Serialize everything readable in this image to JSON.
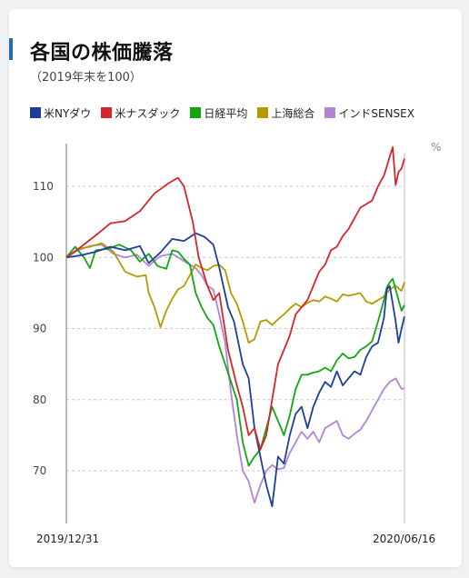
{
  "title": "各国の株価騰落",
  "subtitle": "（2019年末を100）",
  "colors": {
    "accent_bar": "#1f6fb2"
  },
  "chart_data": {
    "type": "line",
    "title": "各国の株価騰落",
    "subtitle": "（2019年末を100）",
    "unit": "%",
    "ylim": [
      62,
      116
    ],
    "yticks": [
      70,
      80,
      90,
      100,
      110
    ],
    "x_start_label": "2019/12/31",
    "x_end_label": "2020/06/16",
    "grid": true,
    "legend": "top",
    "x_trading_days": 115,
    "series": [
      {
        "name": "米NYダウ",
        "color": "#1c3f9a",
        "values": [
          [
            0,
            100
          ],
          [
            5,
            100.3
          ],
          [
            10,
            100.8
          ],
          [
            15,
            101.5
          ],
          [
            20,
            101
          ],
          [
            25,
            101.6
          ],
          [
            28,
            99.2
          ],
          [
            32,
            100.7
          ],
          [
            36,
            102.6
          ],
          [
            40,
            102.3
          ],
          [
            44,
            103.4
          ],
          [
            47,
            102.9
          ],
          [
            50,
            101.8
          ],
          [
            52,
            98.6
          ],
          [
            55,
            93
          ],
          [
            57,
            91
          ],
          [
            60,
            85
          ],
          [
            62,
            83
          ],
          [
            64,
            76
          ],
          [
            66,
            72
          ],
          [
            68,
            68
          ],
          [
            70,
            65
          ],
          [
            72,
            72
          ],
          [
            74,
            71
          ],
          [
            76,
            75
          ],
          [
            78,
            78
          ],
          [
            80,
            79
          ],
          [
            82,
            76
          ],
          [
            84,
            79
          ],
          [
            86,
            81
          ],
          [
            88,
            82.5
          ],
          [
            90,
            81.8
          ],
          [
            92,
            84
          ],
          [
            94,
            82
          ],
          [
            96,
            83
          ],
          [
            98,
            84
          ],
          [
            100,
            83.5
          ],
          [
            102,
            86
          ],
          [
            104,
            87.5
          ],
          [
            106,
            88
          ],
          [
            108,
            91.5
          ],
          [
            109,
            95.5
          ],
          [
            110,
            96
          ],
          [
            111,
            93.5
          ],
          [
            112,
            91
          ],
          [
            113,
            88
          ],
          [
            114,
            90
          ],
          [
            115,
            91.7
          ]
        ]
      },
      {
        "name": "米ナスダック",
        "color": "#d6262b",
        "values": [
          [
            0,
            100
          ],
          [
            5,
            101.5
          ],
          [
            10,
            103.1
          ],
          [
            15,
            104.8
          ],
          [
            20,
            105.1
          ],
          [
            25,
            106.5
          ],
          [
            30,
            109
          ],
          [
            35,
            110.5
          ],
          [
            38,
            111.2
          ],
          [
            40,
            110
          ],
          [
            43,
            105
          ],
          [
            45,
            100
          ],
          [
            48,
            96
          ],
          [
            50,
            94
          ],
          [
            52,
            95
          ],
          [
            55,
            87
          ],
          [
            58,
            82
          ],
          [
            60,
            79
          ],
          [
            62,
            75
          ],
          [
            64,
            76
          ],
          [
            66,
            73
          ],
          [
            68,
            75
          ],
          [
            70,
            80
          ],
          [
            72,
            85
          ],
          [
            74,
            87
          ],
          [
            76,
            89
          ],
          [
            78,
            92
          ],
          [
            80,
            93
          ],
          [
            82,
            94
          ],
          [
            84,
            96
          ],
          [
            86,
            98
          ],
          [
            88,
            99
          ],
          [
            90,
            101
          ],
          [
            92,
            101.5
          ],
          [
            94,
            103
          ],
          [
            96,
            104
          ],
          [
            98,
            105.5
          ],
          [
            100,
            107
          ],
          [
            102,
            107.5
          ],
          [
            104,
            108
          ],
          [
            106,
            110
          ],
          [
            108,
            111.5
          ],
          [
            109,
            112.8
          ],
          [
            110,
            114.2
          ],
          [
            111,
            115.5
          ],
          [
            112,
            110.2
          ],
          [
            113,
            112
          ],
          [
            114,
            112.5
          ],
          [
            115,
            113.9
          ]
        ]
      },
      {
        "name": "日経平均",
        "color": "#12a612",
        "values": [
          [
            0,
            100
          ],
          [
            3,
            101.5
          ],
          [
            6,
            100
          ],
          [
            8,
            98.5
          ],
          [
            10,
            101
          ],
          [
            14,
            101.2
          ],
          [
            18,
            101.8
          ],
          [
            22,
            101
          ],
          [
            25,
            99.4
          ],
          [
            28,
            100.5
          ],
          [
            31,
            98.8
          ],
          [
            34,
            98.4
          ],
          [
            36,
            101
          ],
          [
            38,
            100.8
          ],
          [
            40,
            99.8
          ],
          [
            42,
            99
          ],
          [
            44,
            95
          ],
          [
            46,
            93
          ],
          [
            48,
            91.5
          ],
          [
            50,
            90.5
          ],
          [
            52,
            87.5
          ],
          [
            54,
            85
          ],
          [
            56,
            82.5
          ],
          [
            58,
            80
          ],
          [
            60,
            74
          ],
          [
            62,
            70.7
          ],
          [
            64,
            72
          ],
          [
            66,
            73
          ],
          [
            68,
            76
          ],
          [
            70,
            79
          ],
          [
            72,
            77
          ],
          [
            74,
            75
          ],
          [
            76,
            77.8
          ],
          [
            78,
            81.5
          ],
          [
            80,
            83.5
          ],
          [
            82,
            83.5
          ],
          [
            84,
            83.8
          ],
          [
            86,
            84
          ],
          [
            88,
            84.5
          ],
          [
            90,
            84
          ],
          [
            92,
            85.5
          ],
          [
            94,
            86.5
          ],
          [
            96,
            85.8
          ],
          [
            98,
            86
          ],
          [
            100,
            87
          ],
          [
            102,
            87.5
          ],
          [
            104,
            88.2
          ],
          [
            106,
            91
          ],
          [
            108,
            94
          ],
          [
            109,
            95.8
          ],
          [
            110,
            96.5
          ],
          [
            111,
            97
          ],
          [
            112,
            95.5
          ],
          [
            113,
            94
          ],
          [
            114,
            92.5
          ],
          [
            115,
            93.3
          ]
        ]
      },
      {
        "name": "上海総合",
        "color": "#b59a00",
        "values": [
          [
            0,
            100
          ],
          [
            4,
            101.2
          ],
          [
            8,
            101.5
          ],
          [
            12,
            102
          ],
          [
            16,
            100.8
          ],
          [
            20,
            98
          ],
          [
            24,
            97.3
          ],
          [
            27,
            97.5
          ],
          [
            28,
            95
          ],
          [
            30,
            93
          ],
          [
            32,
            90.2
          ],
          [
            34,
            92.5
          ],
          [
            36,
            94.2
          ],
          [
            38,
            95.5
          ],
          [
            40,
            96
          ],
          [
            42,
            97.5
          ],
          [
            44,
            99
          ],
          [
            46,
            98.5
          ],
          [
            48,
            98.2
          ],
          [
            50,
            98.8
          ],
          [
            52,
            99
          ],
          [
            54,
            98.2
          ],
          [
            56,
            95
          ],
          [
            58,
            93.5
          ],
          [
            60,
            91
          ],
          [
            62,
            88
          ],
          [
            64,
            88.5
          ],
          [
            66,
            91
          ],
          [
            68,
            91.2
          ],
          [
            70,
            90.5
          ],
          [
            72,
            91.3
          ],
          [
            74,
            92
          ],
          [
            76,
            92.8
          ],
          [
            78,
            93.5
          ],
          [
            80,
            93
          ],
          [
            82,
            93.6
          ],
          [
            84,
            94
          ],
          [
            86,
            93.8
          ],
          [
            88,
            94.5
          ],
          [
            90,
            94.2
          ],
          [
            92,
            93.8
          ],
          [
            94,
            94.8
          ],
          [
            96,
            94.6
          ],
          [
            98,
            94.8
          ],
          [
            100,
            95
          ],
          [
            102,
            93.8
          ],
          [
            104,
            93.5
          ],
          [
            106,
            94
          ],
          [
            108,
            94.5
          ],
          [
            110,
            95.5
          ],
          [
            112,
            96
          ],
          [
            114,
            95.3
          ],
          [
            115,
            96.5
          ]
        ]
      },
      {
        "name": "インドSENSEX",
        "color": "#b184d5",
        "values": [
          [
            0,
            100
          ],
          [
            4,
            101
          ],
          [
            8,
            101.6
          ],
          [
            12,
            101.8
          ],
          [
            16,
            100.5
          ],
          [
            20,
            100
          ],
          [
            24,
            100.4
          ],
          [
            28,
            98.8
          ],
          [
            32,
            100.2
          ],
          [
            36,
            100.5
          ],
          [
            40,
            99.5
          ],
          [
            44,
            98.5
          ],
          [
            46,
            97.5
          ],
          [
            48,
            96
          ],
          [
            50,
            95.5
          ],
          [
            52,
            92
          ],
          [
            54,
            88
          ],
          [
            56,
            81
          ],
          [
            58,
            75
          ],
          [
            60,
            70
          ],
          [
            62,
            68.5
          ],
          [
            64,
            65.5
          ],
          [
            66,
            68
          ],
          [
            68,
            70
          ],
          [
            70,
            70.8
          ],
          [
            72,
            70.2
          ],
          [
            74,
            70.4
          ],
          [
            76,
            72.5
          ],
          [
            78,
            74
          ],
          [
            80,
            75.5
          ],
          [
            82,
            74.5
          ],
          [
            84,
            75.5
          ],
          [
            86,
            74
          ],
          [
            88,
            76
          ],
          [
            90,
            76.5
          ],
          [
            92,
            77
          ],
          [
            94,
            75
          ],
          [
            96,
            74.5
          ],
          [
            98,
            75.2
          ],
          [
            100,
            75.8
          ],
          [
            102,
            77
          ],
          [
            104,
            78.5
          ],
          [
            106,
            80
          ],
          [
            108,
            81.5
          ],
          [
            110,
            82.5
          ],
          [
            112,
            83
          ],
          [
            114,
            81.5
          ],
          [
            115,
            81.6
          ]
        ]
      }
    ]
  }
}
